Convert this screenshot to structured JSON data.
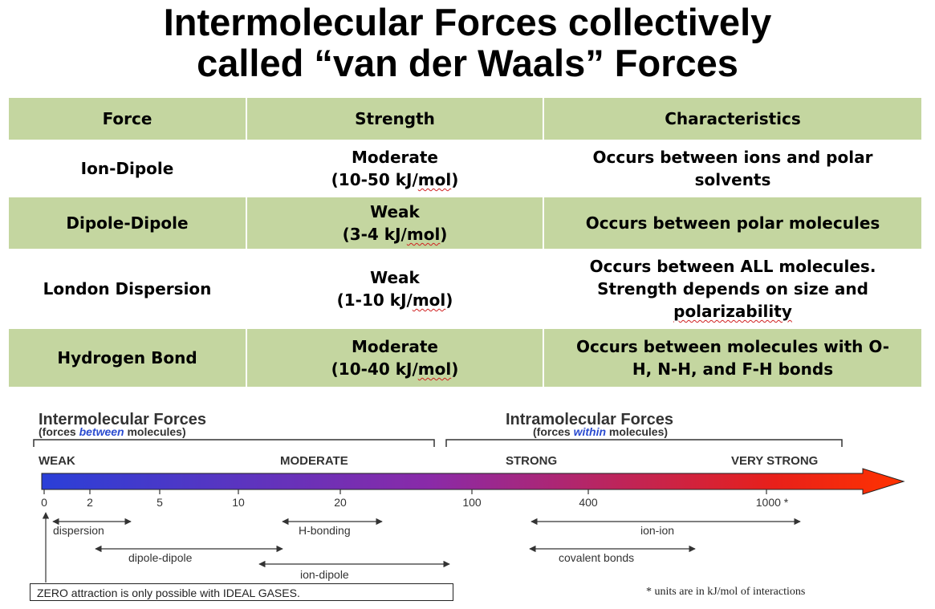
{
  "title": {
    "line1": "Intermolecular Forces collectively",
    "line2": "called “van der Waals” Forces"
  },
  "table": {
    "headers": [
      "Force",
      "Strength",
      "Characteristics"
    ],
    "rows": [
      {
        "force": "Ion-Dipole",
        "strength_level": "Moderate",
        "strength_range": "(10-50 kJ/mol)",
        "characteristics": [
          "Occurs between ions and polar",
          "solvents"
        ]
      },
      {
        "force": "Dipole-Dipole",
        "strength_level": "Weak",
        "strength_range": "(3-4 kJ/mol)",
        "characteristics": [
          "Occurs between polar molecules"
        ]
      },
      {
        "force": "London Dispersion",
        "strength_level": "Weak",
        "strength_range": "(1-10 kJ/mol)",
        "characteristics": [
          "Occurs between ALL molecules.",
          "Strength depends on size and",
          "polarizability"
        ]
      },
      {
        "force": "Hydrogen Bond",
        "strength_level": "Moderate",
        "strength_range": "(10-40 kJ/mol)",
        "characteristics": [
          "Occurs between molecules with O-",
          "H, N-H, and F-H bonds"
        ]
      }
    ]
  },
  "scale": {
    "intermolecular_title": "Intermolecular Forces",
    "intermolecular_sub_pre": "(forces ",
    "intermolecular_sub_em": "between",
    "intermolecular_sub_post": " molecules)",
    "intramolecular_title": "Intramolecular Forces",
    "intramolecular_sub_pre": "(forces ",
    "intramolecular_sub_em": "within",
    "intramolecular_sub_post": " molecules)",
    "levels": [
      "WEAK",
      "MODERATE",
      "STRONG",
      "VERY STRONG"
    ],
    "ticks": [
      "0",
      "2",
      "5",
      "10",
      "20",
      "100",
      "400",
      "1000 *"
    ],
    "ranges": [
      "dispersion",
      "H-bonding",
      "ion-ion",
      "dipole-dipole",
      "covalent bonds",
      "ion-dipole"
    ],
    "zero_note": "ZERO attraction is only possible with IDEAL GASES.",
    "units_note": "* units are in kJ/mol of interactions",
    "gradient_colors": [
      "#2a3fd8",
      "#8a2aa8",
      "#e8201a",
      "#ff3300"
    ]
  }
}
